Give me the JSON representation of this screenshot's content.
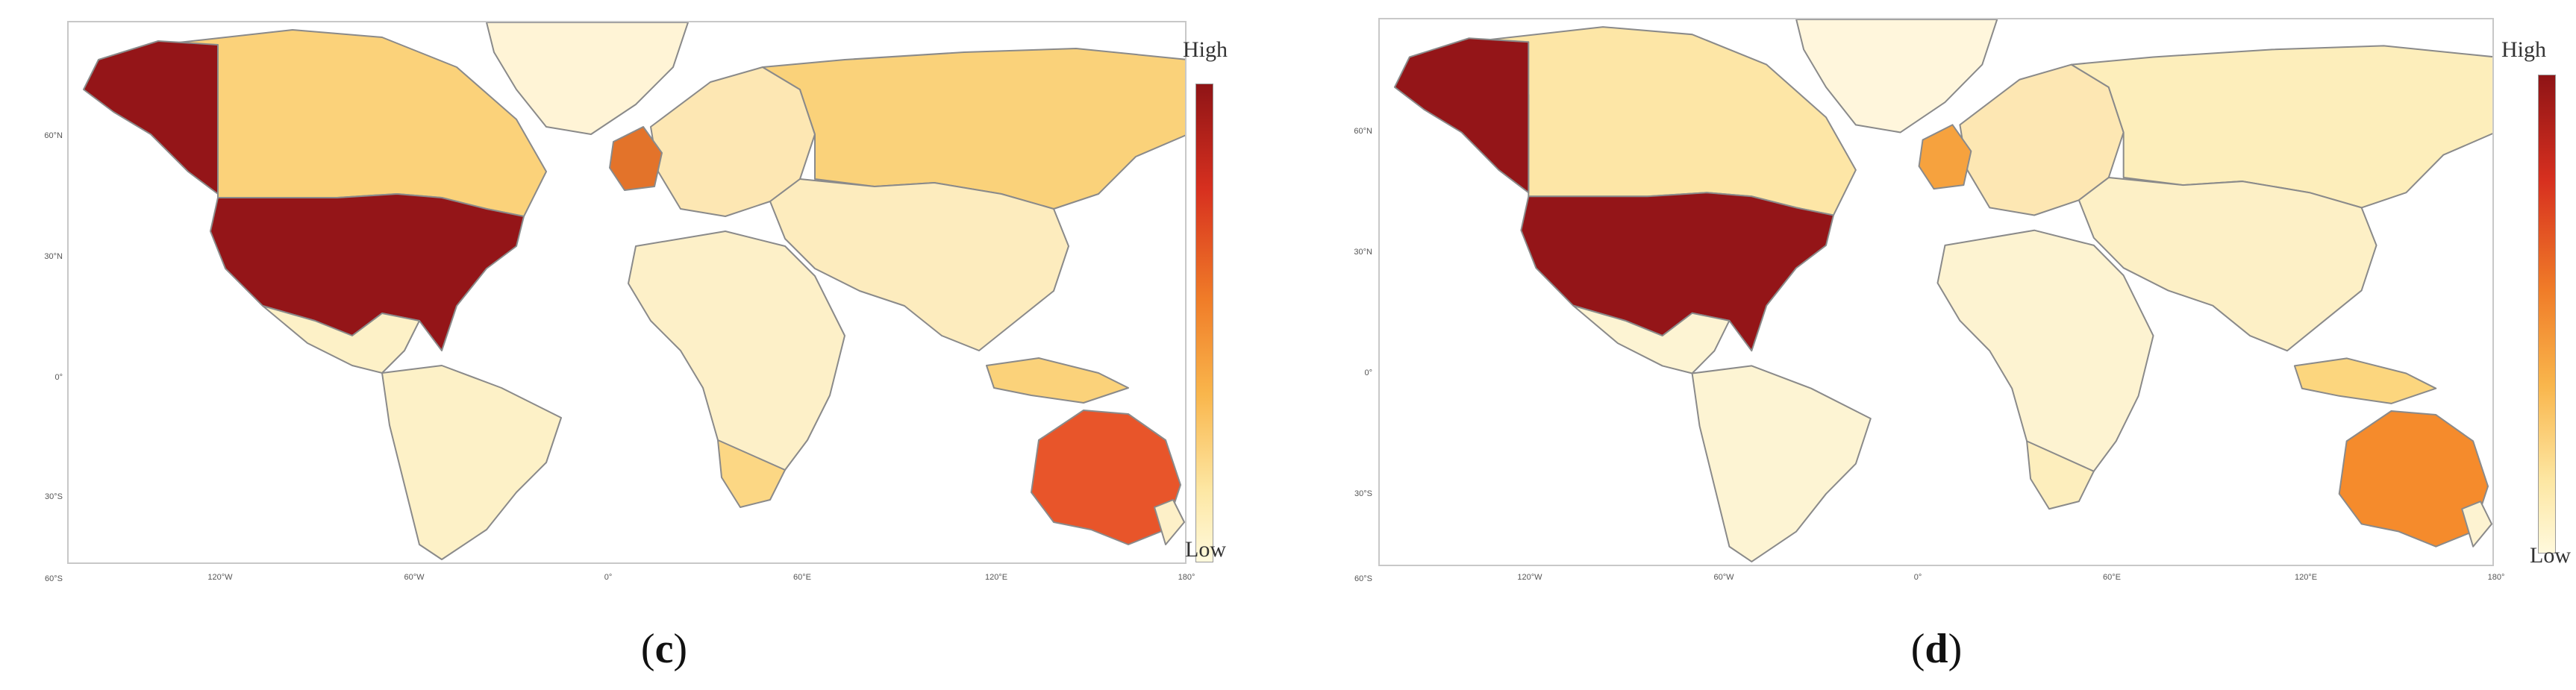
{
  "legend": {
    "high": "High",
    "low": "Low"
  },
  "panels": [
    {
      "caption_letter": "c",
      "lat_labels": [
        "60°N",
        "30°N",
        "0°",
        "30°S",
        "60°S"
      ],
      "lon_labels": [
        "120°W",
        "60°W",
        "0°",
        "60°E",
        "120°E",
        "180°"
      ],
      "colors": {
        "usa": "#941518",
        "alaska": "#941518",
        "australia": "#e8552a",
        "canada": "#fbd27a",
        "russia": "#fad27a",
        "uk": "#e3732a",
        "europe": "#fde7b3",
        "latam": "#fdf1c7",
        "africa": "#fdf0c8",
        "south_africa": "#fcd784",
        "asia": "#fdecbe",
        "indonesia": "#fbd27a",
        "greenland": "#fff4d6",
        "newzealand": "#fdf0c8"
      }
    },
    {
      "caption_letter": "d",
      "lat_labels": [
        "60°N",
        "30°N",
        "0°",
        "30°S",
        "60°S"
      ],
      "lon_labels": [
        "120°W",
        "60°W",
        "0°",
        "60°E",
        "120°E",
        "180°"
      ],
      "colors": {
        "usa": "#941518",
        "alaska": "#941518",
        "australia": "#f58b2c",
        "canada": "#fde6a6",
        "russia": "#fdeebb",
        "uk": "#f6a23e",
        "europe": "#fde7b3",
        "latam": "#fdf4d3",
        "africa": "#fdf3d1",
        "south_africa": "#fdeebd",
        "asia": "#fdf0c6",
        "indonesia": "#fcd67e",
        "greenland": "#fff6dc",
        "newzealand": "#fdf3d1"
      }
    }
  ]
}
